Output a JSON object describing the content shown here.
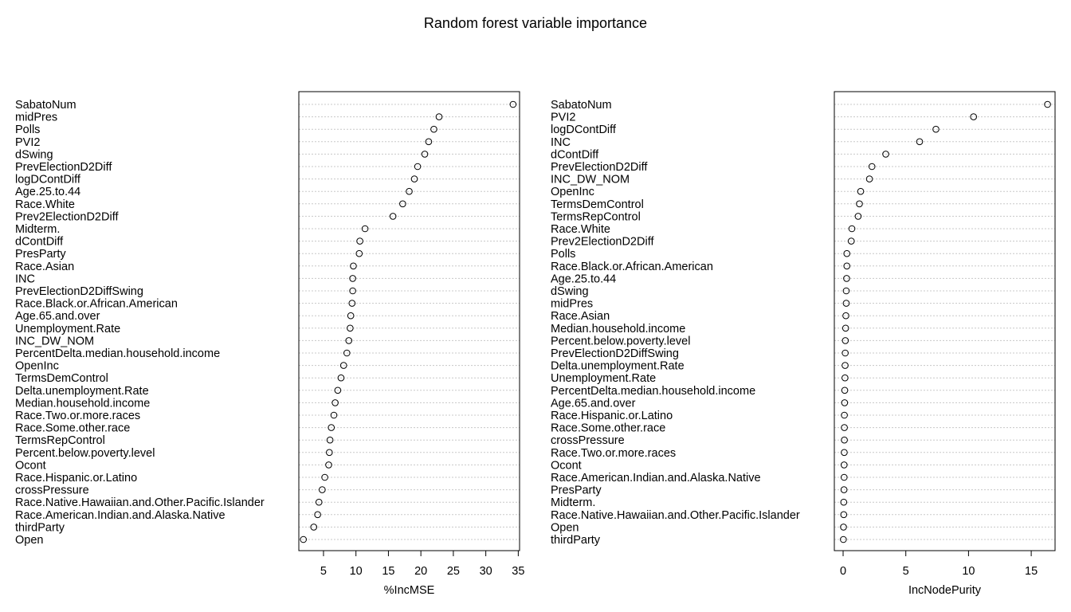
{
  "chart_data": {
    "title": "Random forest variable importance",
    "type": "dotchart",
    "grid": true,
    "panels": [
      {
        "xlabel": "%IncMSE",
        "xticks": [
          5,
          10,
          15,
          20,
          25,
          30,
          35
        ],
        "xlim": [
          1.2,
          35.2
        ],
        "labels": [
          "SabatoNum",
          "midPres",
          "Polls",
          "PVI2",
          "dSwing",
          "PrevElectionD2Diff",
          "logDContDiff",
          "Age.25.to.44",
          "Race.White",
          "Prev2ElectionD2Diff",
          "Midterm.",
          "dContDiff",
          "PresParty",
          "Race.Asian",
          "INC",
          "PrevElectionD2DiffSwing",
          "Race.Black.or.African.American",
          "Age.65.and.over",
          "Unemployment.Rate",
          "INC_DW_NOM",
          "PercentDelta.median.household.income",
          "OpenInc",
          "TermsDemControl",
          "Delta.unemployment.Rate",
          "Median.household.income",
          "Race.Two.or.more.races",
          "Race.Some.other.race",
          "TermsRepControl",
          "Percent.below.poverty.level",
          "Ocont",
          "Race.Hispanic.or.Latino",
          "crossPressure",
          "Race.Native.Hawaiian.and.Other.Pacific.Islander",
          "Race.American.Indian.and.Alaska.Native",
          "thirdParty",
          "Open"
        ],
        "values": [
          34.2,
          22.8,
          22.0,
          21.2,
          20.6,
          19.5,
          19.0,
          18.2,
          17.2,
          15.7,
          11.4,
          10.6,
          10.5,
          9.6,
          9.5,
          9.5,
          9.4,
          9.2,
          9.1,
          8.9,
          8.6,
          8.1,
          7.7,
          7.2,
          6.8,
          6.6,
          6.2,
          6.0,
          5.9,
          5.8,
          5.2,
          4.8,
          4.3,
          4.1,
          3.5,
          1.9
        ]
      },
      {
        "xlabel": "IncNodePurity",
        "xticks": [
          0,
          5,
          10,
          15
        ],
        "xlim": [
          -0.7,
          16.9
        ],
        "labels": [
          "SabatoNum",
          "PVI2",
          "logDContDiff",
          "INC",
          "dContDiff",
          "PrevElectionD2Diff",
          "INC_DW_NOM",
          "OpenInc",
          "TermsDemControl",
          "TermsRepControl",
          "Race.White",
          "Prev2ElectionD2Diff",
          "Polls",
          "Race.Black.or.African.American",
          "Age.25.to.44",
          "dSwing",
          "midPres",
          "Race.Asian",
          "Median.household.income",
          "Percent.below.poverty.level",
          "PrevElectionD2DiffSwing",
          "Delta.unemployment.Rate",
          "Unemployment.Rate",
          "PercentDelta.median.household.income",
          "Age.65.and.over",
          "Race.Hispanic.or.Latino",
          "Race.Some.other.race",
          "crossPressure",
          "Race.Two.or.more.races",
          "Ocont",
          "Race.American.Indian.and.Alaska.Native",
          "PresParty",
          "Midterm.",
          "Race.Native.Hawaiian.and.Other.Pacific.Islander",
          "Open",
          "thirdParty"
        ],
        "values": [
          16.3,
          10.4,
          7.4,
          6.1,
          3.4,
          2.3,
          2.1,
          1.4,
          1.3,
          1.2,
          0.7,
          0.65,
          0.3,
          0.3,
          0.28,
          0.25,
          0.25,
          0.22,
          0.2,
          0.18,
          0.17,
          0.16,
          0.15,
          0.13,
          0.12,
          0.1,
          0.1,
          0.1,
          0.09,
          0.08,
          0.08,
          0.07,
          0.05,
          0.05,
          0.03,
          0.02
        ]
      }
    ]
  }
}
